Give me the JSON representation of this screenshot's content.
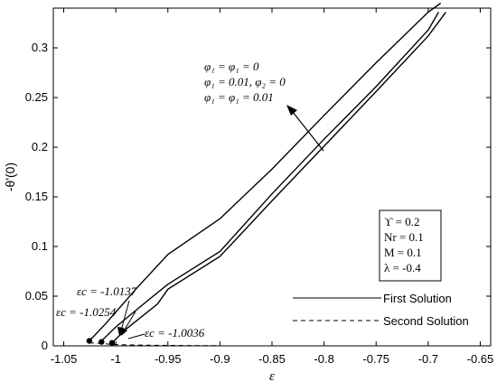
{
  "chart_data": {
    "type": "line",
    "title": "",
    "xlabel": "ε",
    "ylabel": "-θ'(0)",
    "xlim": [
      -1.06,
      -0.64
    ],
    "ylim": [
      0,
      0.34
    ],
    "xticks": [
      -1.05,
      -1,
      -0.95,
      -0.9,
      -0.85,
      -0.8,
      -0.75,
      -0.7,
      -0.65
    ],
    "xtick_labels": [
      "-1.05",
      "-1",
      "-0.95",
      "-0.9",
      "-0.85",
      "-0.8",
      "-0.75",
      "-0.7",
      "-0.65"
    ],
    "yticks": [
      0,
      0.05,
      0.1,
      0.15,
      0.2,
      0.25,
      0.3
    ],
    "ytick_labels": [
      "0",
      "0.05",
      "0.1",
      "0.15",
      "0.2",
      "0.25",
      "0.3"
    ],
    "grid": false,
    "legend": {
      "placement": "bottom-right",
      "entries": [
        {
          "label": "First Solution",
          "style": "solid"
        },
        {
          "label": "Second Solution",
          "style": "dashed"
        }
      ]
    },
    "series": [
      {
        "style": "solid",
        "x": [
          -1.0254,
          -1.01,
          -0.98,
          -0.95,
          -0.9,
          -0.85,
          -0.8,
          -0.75,
          -0.7,
          -0.688
        ],
        "y": [
          0.005,
          0.022,
          0.058,
          0.092,
          0.128,
          0.178,
          0.232,
          0.285,
          0.336,
          0.345
        ]
      },
      {
        "style": "solid",
        "x": [
          -1.0137,
          -1.0,
          -0.97,
          -0.95,
          -0.9,
          -0.85,
          -0.8,
          -0.75,
          -0.7,
          -0.69
        ],
        "y": [
          0.005,
          0.019,
          0.045,
          0.062,
          0.095,
          0.153,
          0.208,
          0.261,
          0.318,
          0.336
        ]
      },
      {
        "style": "solid",
        "x": [
          -1.0036,
          -0.99,
          -0.96,
          -0.95,
          -0.9,
          -0.85,
          -0.8,
          -0.75,
          -0.7,
          -0.683
        ],
        "y": [
          0.003,
          0.017,
          0.042,
          0.057,
          0.09,
          0.146,
          0.201,
          0.256,
          0.312,
          0.336
        ]
      },
      {
        "style": "dashed",
        "x": [
          -1.0254,
          -1.0137,
          -1.0036,
          -0.99,
          -0.96,
          -0.92,
          -0.9
        ],
        "y": [
          0.003,
          0.0025,
          0.0015,
          0.001,
          0.0005,
          0.0003,
          0.0002
        ]
      }
    ],
    "critical_points": [
      {
        "x": -1.0254,
        "y": 0.005,
        "label": "ε_c = -1.0254"
      },
      {
        "x": -1.0137,
        "y": 0.004,
        "label": "ε_c = -1.0137"
      },
      {
        "x": -1.0036,
        "y": 0.003,
        "label": "ε_c = -1.0036"
      }
    ],
    "annotations": {
      "param_labels": [
        "φ₁ = φ₁ = 0",
        "φ₁ = 0.01, φ₂ = 0",
        "φ₁ = φ₁ = 0.01"
      ],
      "arrow": {
        "from": [
          -0.8,
          0.2
        ],
        "to": [
          -0.827,
          0.24
        ]
      },
      "eps_c_labels": [
        "εc = -1.0137",
        "εc = -1.0254",
        "εc = -1.0036"
      ],
      "box": [
        "ϒ = 0.2",
        "Nr = 0.1",
        "M = 0.1",
        "λ = -0.4"
      ]
    }
  }
}
